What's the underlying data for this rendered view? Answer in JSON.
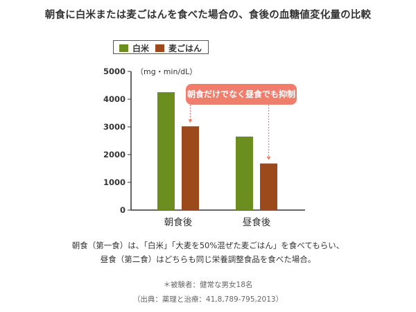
{
  "title": "朝食に白米または麦ごはんを食べた場合の、食後の血糖値変化量の比較",
  "colors": {
    "hakumai": "#6b8e1f",
    "mugi": "#9c4a1c",
    "callout": "#ef7e6d",
    "axis": "#333333"
  },
  "chart_data": {
    "type": "bar",
    "ylabel": "（mg・min/dL）",
    "ylim": [
      0,
      5000
    ],
    "yticks": [
      0,
      1000,
      2000,
      3000,
      4000,
      5000
    ],
    "categories": [
      "朝食後",
      "昼食後"
    ],
    "series": [
      {
        "name": "白米",
        "values": [
          4250,
          2650
        ]
      },
      {
        "name": "麦ごはん",
        "values": [
          3020,
          1680
        ]
      }
    ],
    "legend": "top-left",
    "grid": false,
    "annotation": "朝食だけでなく昼食でも抑制"
  },
  "notes": {
    "line1": "朝食（第一食）は、「白米」「大麦を50%混ぜた麦ごはん」を食べてもらい、",
    "line2": "昼食（第二食）はどちらも同じ栄養調整食品を食べた場合。",
    "subjects": "＊被験者：健常な男女18名",
    "source": "（出典：薬理と治療：41,8,789-795,2013）"
  }
}
